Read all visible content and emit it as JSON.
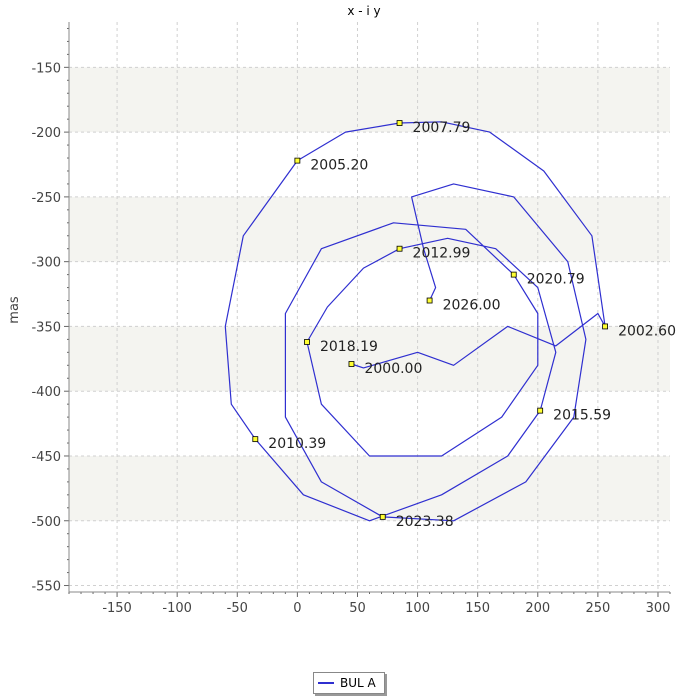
{
  "chart_data": {
    "type": "line",
    "title": "x - i y",
    "xlabel": "",
    "ylabel": "mas",
    "xlim": [
      -190,
      310
    ],
    "ylim": [
      -555,
      -115
    ],
    "x_ticks": [
      -150,
      -100,
      -50,
      0,
      50,
      100,
      150,
      200,
      250,
      300
    ],
    "y_ticks": [
      -550,
      -500,
      -450,
      -400,
      -350,
      -300,
      -250,
      -200,
      -150
    ],
    "grid": true,
    "legend_position": "bottom-center",
    "series": [
      {
        "name": "BUL A",
        "color": "#2f2fd0",
        "points": [
          [
            45.0,
            -379.0
          ],
          [
            55.0,
            -382.0
          ],
          [
            100.0,
            -370.0
          ],
          [
            130.0,
            -380.0
          ],
          [
            175.0,
            -350.0
          ],
          [
            215.0,
            -365.0
          ],
          [
            250.0,
            -340.0
          ],
          [
            256.0,
            -350.0
          ],
          [
            245.0,
            -280.0
          ],
          [
            205.0,
            -230.0
          ],
          [
            160.0,
            -200.0
          ],
          [
            120.0,
            -192.0
          ],
          [
            85.0,
            -193.0
          ],
          [
            40.0,
            -200.0
          ],
          [
            0.0,
            -222.0
          ],
          [
            -45.0,
            -280.0
          ],
          [
            -60.0,
            -350.0
          ],
          [
            -55.0,
            -410.0
          ],
          [
            -35.0,
            -437.0
          ],
          [
            5.0,
            -480.0
          ],
          [
            60.0,
            -500.0
          ],
          [
            120.0,
            -480.0
          ],
          [
            175.0,
            -450.0
          ],
          [
            202.0,
            -415.0
          ],
          [
            215.0,
            -370.0
          ],
          [
            200.0,
            -320.0
          ],
          [
            165.0,
            -290.0
          ],
          [
            125.0,
            -282.0
          ],
          [
            85.0,
            -290.0
          ],
          [
            55.0,
            -305.0
          ],
          [
            25.0,
            -335.0
          ],
          [
            8.0,
            -362.0
          ],
          [
            20.0,
            -410.0
          ],
          [
            60.0,
            -450.0
          ],
          [
            120.0,
            -450.0
          ],
          [
            170.0,
            -420.0
          ],
          [
            200.0,
            -380.0
          ],
          [
            200.0,
            -340.0
          ],
          [
            180.0,
            -310.0
          ],
          [
            140.0,
            -275.0
          ],
          [
            80.0,
            -270.0
          ],
          [
            20.0,
            -290.0
          ],
          [
            -10.0,
            -340.0
          ],
          [
            -10.0,
            -420.0
          ],
          [
            20.0,
            -470.0
          ],
          [
            71.0,
            -497.0
          ],
          [
            130.0,
            -500.0
          ],
          [
            190.0,
            -470.0
          ],
          [
            230.0,
            -420.0
          ],
          [
            240.0,
            -360.0
          ],
          [
            225.0,
            -300.0
          ],
          [
            180.0,
            -250.0
          ],
          [
            130.0,
            -240.0
          ],
          [
            95.0,
            -250.0
          ],
          [
            105.0,
            -290.0
          ],
          [
            115.0,
            -320.0
          ],
          [
            110.0,
            -330.0
          ]
        ]
      }
    ],
    "annotations": [
      {
        "label": "2000.00",
        "x": 45.0,
        "y": -379.0
      },
      {
        "label": "2002.60",
        "x": 256.0,
        "y": -350.0
      },
      {
        "label": "2005.20",
        "x": 0.0,
        "y": -222.0
      },
      {
        "label": "2007.79",
        "x": 85.0,
        "y": -193.0
      },
      {
        "label": "2010.39",
        "x": -35.0,
        "y": -437.0
      },
      {
        "label": "2012.99",
        "x": 85.0,
        "y": -290.0
      },
      {
        "label": "2015.59",
        "x": 202.0,
        "y": -415.0
      },
      {
        "label": "2018.19",
        "x": 8.0,
        "y": -362.0
      },
      {
        "label": "2020.79",
        "x": 180.0,
        "y": -310.0
      },
      {
        "label": "2023.38",
        "x": 71.0,
        "y": -497.0
      },
      {
        "label": "2026.00",
        "x": 110.0,
        "y": -330.0
      }
    ]
  }
}
